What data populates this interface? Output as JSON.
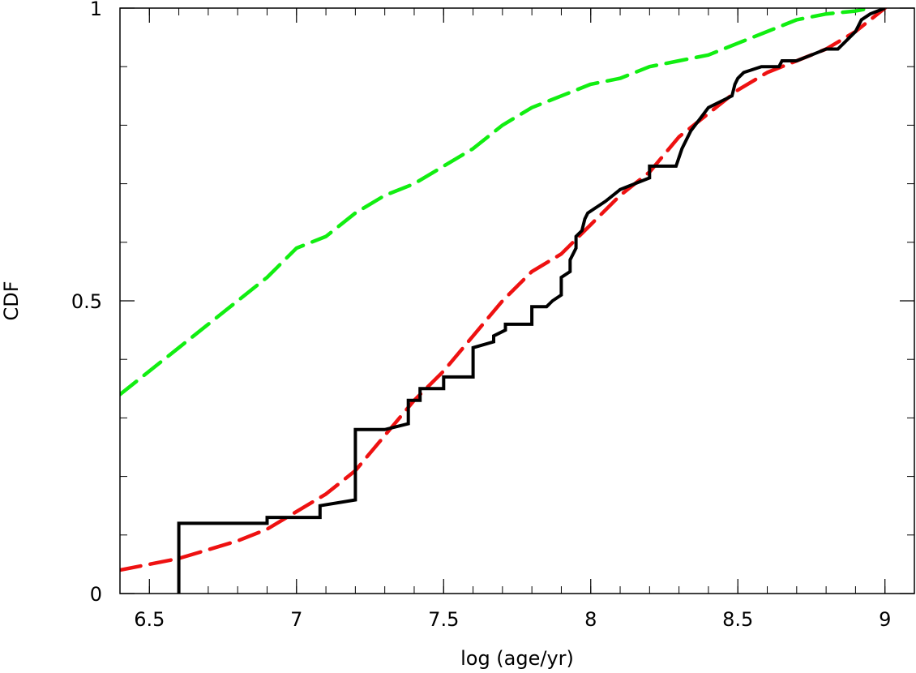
{
  "chart_data": {
    "type": "line",
    "title": "",
    "xlabel": "log (age/yr)",
    "ylabel": "CDF",
    "xlim": [
      6.4,
      9.1
    ],
    "ylim": [
      0,
      1
    ],
    "x_ticks": [
      {
        "value": 6.5,
        "label": "6.5"
      },
      {
        "value": 7,
        "label": "7"
      },
      {
        "value": 7.5,
        "label": "7.5"
      },
      {
        "value": 8,
        "label": "8"
      },
      {
        "value": 8.5,
        "label": "8.5"
      },
      {
        "value": 9,
        "label": "9"
      }
    ],
    "y_ticks": [
      {
        "value": 0,
        "label": "0"
      },
      {
        "value": 0.5,
        "label": "0.5"
      },
      {
        "value": 1,
        "label": "1"
      }
    ],
    "x_minor_step": 0.1,
    "y_minor_step": 0.1,
    "grid": false,
    "legend": "none",
    "series": [
      {
        "style": "solid",
        "color": "#000000",
        "step": true,
        "x": [
          6.6,
          6.6,
          6.9,
          6.9,
          7.08,
          7.08,
          7.2,
          7.2,
          7.3,
          7.38,
          7.38,
          7.42,
          7.42,
          7.5,
          7.5,
          7.6,
          7.6,
          7.67,
          7.67,
          7.71,
          7.71,
          7.8,
          7.8,
          7.85,
          7.87,
          7.9,
          7.9,
          7.93,
          7.93,
          7.95,
          7.95,
          7.97,
          7.98,
          7.99,
          8.02,
          8.05,
          8.1,
          8.2,
          8.2,
          8.29,
          8.31,
          8.34,
          8.37,
          8.4,
          8.44,
          8.48,
          8.49,
          8.5,
          8.52,
          8.58,
          8.62,
          8.64,
          8.65,
          8.7,
          8.75,
          8.8,
          8.84,
          8.86,
          8.9,
          8.92,
          8.95,
          9.0
        ],
        "y": [
          0.0,
          0.12,
          0.12,
          0.13,
          0.13,
          0.15,
          0.16,
          0.28,
          0.28,
          0.29,
          0.33,
          0.33,
          0.35,
          0.35,
          0.37,
          0.37,
          0.42,
          0.43,
          0.44,
          0.45,
          0.46,
          0.46,
          0.49,
          0.49,
          0.5,
          0.51,
          0.54,
          0.55,
          0.57,
          0.59,
          0.61,
          0.62,
          0.64,
          0.65,
          0.66,
          0.67,
          0.69,
          0.71,
          0.73,
          0.73,
          0.76,
          0.79,
          0.81,
          0.83,
          0.84,
          0.85,
          0.87,
          0.88,
          0.89,
          0.9,
          0.9,
          0.9,
          0.91,
          0.91,
          0.92,
          0.93,
          0.93,
          0.94,
          0.96,
          0.98,
          0.99,
          1.0
        ]
      },
      {
        "style": "dashed",
        "color": "#ee1111",
        "step": false,
        "x": [
          6.4,
          6.5,
          6.6,
          6.7,
          6.8,
          6.9,
          7.0,
          7.1,
          7.2,
          7.3,
          7.4,
          7.5,
          7.6,
          7.7,
          7.8,
          7.9,
          8.0,
          8.1,
          8.2,
          8.3,
          8.4,
          8.5,
          8.6,
          8.7,
          8.8,
          8.9,
          9.0
        ],
        "y": [
          0.04,
          0.05,
          0.06,
          0.075,
          0.09,
          0.11,
          0.14,
          0.17,
          0.21,
          0.27,
          0.33,
          0.38,
          0.44,
          0.5,
          0.55,
          0.58,
          0.63,
          0.68,
          0.72,
          0.78,
          0.82,
          0.86,
          0.89,
          0.91,
          0.93,
          0.96,
          1.0
        ]
      },
      {
        "style": "dashed",
        "color": "#11ee11",
        "step": false,
        "x": [
          6.4,
          6.5,
          6.6,
          6.7,
          6.8,
          6.9,
          7.0,
          7.1,
          7.2,
          7.3,
          7.4,
          7.5,
          7.6,
          7.7,
          7.8,
          7.9,
          8.0,
          8.1,
          8.2,
          8.3,
          8.4,
          8.5,
          8.6,
          8.7,
          8.8,
          8.9,
          8.95
        ],
        "y": [
          0.34,
          0.38,
          0.42,
          0.46,
          0.5,
          0.54,
          0.59,
          0.61,
          0.65,
          0.68,
          0.7,
          0.73,
          0.76,
          0.8,
          0.83,
          0.85,
          0.87,
          0.88,
          0.9,
          0.91,
          0.92,
          0.94,
          0.96,
          0.98,
          0.99,
          0.995,
          1.0
        ]
      }
    ]
  }
}
